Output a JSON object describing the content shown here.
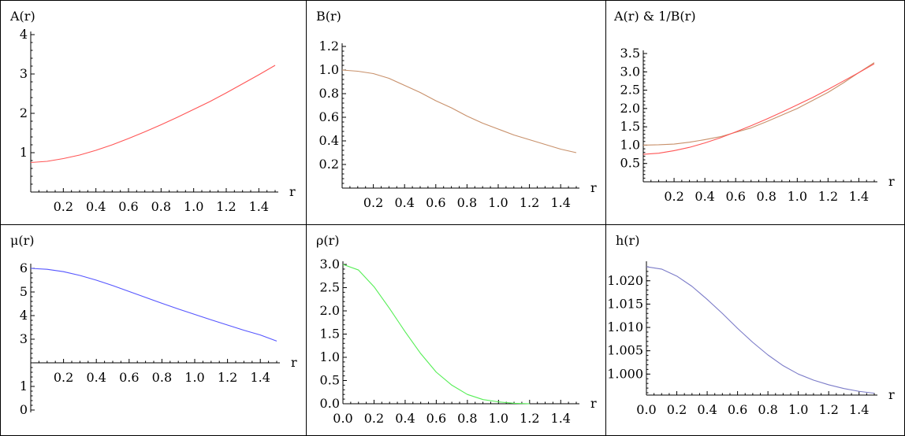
{
  "chart_data": [
    {
      "type": "line",
      "title": "A(r)",
      "xlabel": "r",
      "ylabel": "A(r)",
      "xlim": [
        0,
        1.5
      ],
      "ylim": [
        0,
        4
      ],
      "x_ticks": [
        "0.2",
        "0.4",
        "0.6",
        "0.8",
        "1.0",
        "1.2",
        "1.4"
      ],
      "y_ticks": [
        "1",
        "2",
        "3",
        "4"
      ],
      "series": [
        {
          "color": "#ff5555",
          "x": [
            0,
            0.1,
            0.2,
            0.3,
            0.4,
            0.5,
            0.6,
            0.7,
            0.8,
            0.9,
            1.0,
            1.1,
            1.2,
            1.3,
            1.4,
            1.5
          ],
          "y": [
            0.75,
            0.78,
            0.85,
            0.94,
            1.06,
            1.2,
            1.36,
            1.53,
            1.71,
            1.9,
            2.1,
            2.3,
            2.52,
            2.75,
            2.98,
            3.22
          ]
        }
      ]
    },
    {
      "type": "line",
      "title": "B(r)",
      "xlabel": "r",
      "ylabel": "B(r)",
      "xlim": [
        0,
        1.5
      ],
      "ylim": [
        0,
        1.2
      ],
      "x_ticks": [
        "0.2",
        "0.4",
        "0.6",
        "0.8",
        "1.0",
        "1.2",
        "1.4"
      ],
      "y_ticks": [
        "0.2",
        "0.4",
        "0.6",
        "0.8",
        "1.0",
        "1.2"
      ],
      "series": [
        {
          "color": "#c8906a",
          "x": [
            0,
            0.1,
            0.2,
            0.3,
            0.4,
            0.5,
            0.6,
            0.7,
            0.8,
            0.9,
            1.0,
            1.1,
            1.2,
            1.3,
            1.4,
            1.5
          ],
          "y": [
            1.0,
            0.99,
            0.97,
            0.93,
            0.87,
            0.81,
            0.74,
            0.68,
            0.61,
            0.55,
            0.5,
            0.45,
            0.41,
            0.37,
            0.33,
            0.3
          ]
        }
      ]
    },
    {
      "type": "line",
      "title": "A(r) & 1/B(r)",
      "xlabel": "r",
      "ylabel": "A(r) & 1/B(r)",
      "xlim": [
        0,
        1.5
      ],
      "ylim": [
        0,
        3.5
      ],
      "x_ticks": [
        "0.2",
        "0.4",
        "0.6",
        "0.8",
        "1.0",
        "1.2",
        "1.4"
      ],
      "y_ticks": [
        "0.5",
        "1.0",
        "1.5",
        "2.0",
        "2.5",
        "3.0",
        "3.5"
      ],
      "series": [
        {
          "color": "#c8906a",
          "x": [
            0,
            0.1,
            0.2,
            0.3,
            0.4,
            0.5,
            0.6,
            0.7,
            0.8,
            0.9,
            1.0,
            1.1,
            1.2,
            1.3,
            1.4,
            1.5
          ],
          "y": [
            1.0,
            1.01,
            1.03,
            1.08,
            1.15,
            1.23,
            1.35,
            1.47,
            1.64,
            1.82,
            2.0,
            2.22,
            2.44,
            2.7,
            2.98,
            3.25
          ]
        },
        {
          "color": "#ff5555",
          "x": [
            0,
            0.1,
            0.2,
            0.3,
            0.4,
            0.5,
            0.6,
            0.7,
            0.8,
            0.9,
            1.0,
            1.1,
            1.2,
            1.3,
            1.4,
            1.5
          ],
          "y": [
            0.75,
            0.78,
            0.85,
            0.94,
            1.06,
            1.2,
            1.36,
            1.53,
            1.71,
            1.9,
            2.1,
            2.3,
            2.52,
            2.75,
            2.98,
            3.22
          ]
        }
      ]
    },
    {
      "type": "line",
      "title": "μ(r)",
      "xlabel": "r",
      "ylabel": "μ(r)",
      "xlim": [
        0,
        1.5
      ],
      "ylim": [
        0,
        6
      ],
      "x_ticks": [
        "0.2",
        "0.4",
        "0.6",
        "0.8",
        "1.0",
        "1.2",
        "1.4"
      ],
      "y_ticks": [
        "0",
        "1",
        "3",
        "4",
        "5",
        "6"
      ],
      "series": [
        {
          "color": "#5555ff",
          "x": [
            0,
            0.1,
            0.2,
            0.3,
            0.4,
            0.5,
            0.6,
            0.7,
            0.8,
            0.9,
            1.0,
            1.1,
            1.2,
            1.3,
            1.4,
            1.5
          ],
          "y": [
            6.0,
            5.96,
            5.86,
            5.7,
            5.5,
            5.27,
            5.02,
            4.77,
            4.52,
            4.28,
            4.05,
            3.82,
            3.6,
            3.38,
            3.18,
            2.92
          ]
        }
      ]
    },
    {
      "type": "line",
      "title": "ρ(r)",
      "xlabel": "r",
      "ylabel": "ρ(r)",
      "xlim": [
        0,
        1.5
      ],
      "ylim": [
        0,
        3.0
      ],
      "x_ticks": [
        "0.0",
        "0.2",
        "0.4",
        "0.6",
        "0.8",
        "1.0",
        "1.2",
        "1.4"
      ],
      "y_ticks": [
        "0.0",
        "0.5",
        "1.0",
        "1.5",
        "2.0",
        "2.5",
        "3.0"
      ],
      "series": [
        {
          "color": "#55ee55",
          "x": [
            0,
            0.1,
            0.2,
            0.3,
            0.4,
            0.5,
            0.6,
            0.7,
            0.8,
            0.9,
            1.0,
            1.1,
            1.2
          ],
          "y": [
            3.0,
            2.88,
            2.52,
            2.05,
            1.55,
            1.08,
            0.68,
            0.4,
            0.2,
            0.09,
            0.04,
            0.01,
            0.0
          ]
        }
      ]
    },
    {
      "type": "line",
      "title": "h(r)",
      "xlabel": "r",
      "ylabel": "h(r)",
      "xlim": [
        0,
        1.5
      ],
      "ylim": [
        0.9955,
        1.0235
      ],
      "x_ticks": [
        "0.0",
        "0.2",
        "0.4",
        "0.6",
        "0.8",
        "1.0",
        "1.2",
        "1.4"
      ],
      "y_ticks": [
        "1.000",
        "1.005",
        "1.010",
        "1.015",
        "1.020"
      ],
      "series": [
        {
          "color": "#7b7bc8",
          "x": [
            0,
            0.1,
            0.2,
            0.3,
            0.4,
            0.5,
            0.6,
            0.7,
            0.8,
            0.9,
            1.0,
            1.1,
            1.2,
            1.3,
            1.4,
            1.5
          ],
          "y": [
            1.023,
            1.0225,
            1.021,
            1.0188,
            1.016,
            1.013,
            1.0098,
            1.0068,
            1.0041,
            1.0018,
            1.0,
            0.9987,
            0.9977,
            0.9969,
            0.9963,
            0.9959
          ]
        }
      ]
    }
  ]
}
